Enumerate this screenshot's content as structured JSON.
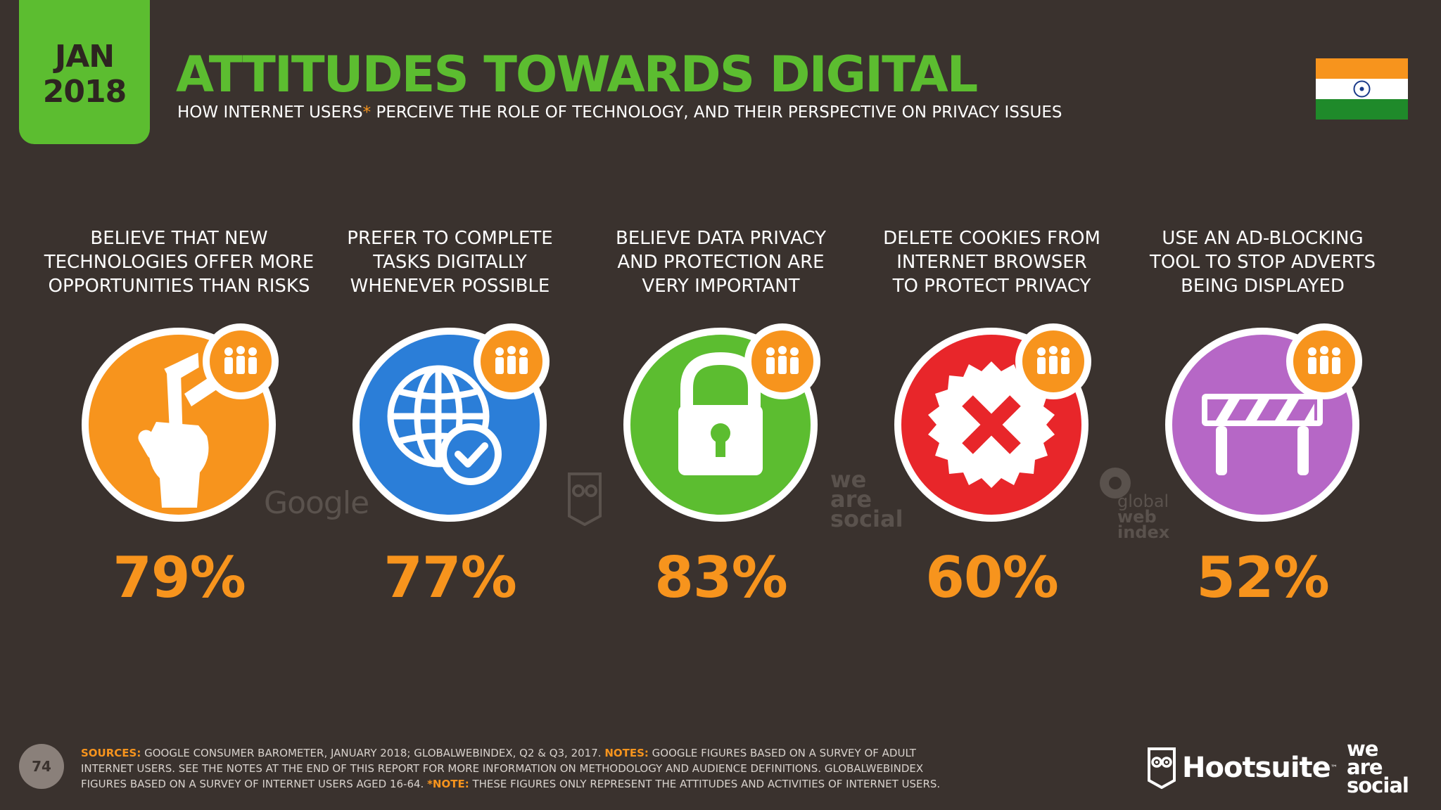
{
  "header": {
    "date_month": "JAN",
    "date_year": "2018",
    "title": "ATTITUDES TOWARDS DIGITAL",
    "subtitle_pre": "HOW INTERNET USERS",
    "subtitle_asterisk": "*",
    "subtitle_post": " PERCEIVE THE ROLE OF TECHNOLOGY, AND THEIR PERSPECTIVE ON PRIVACY ISSUES",
    "flag_icon": "india-flag-icon"
  },
  "stats": [
    {
      "label": "BELIEVE THAT NEW\nTECHNOLOGIES OFFER MORE\nOPPORTUNITIES THAN RISKS",
      "value": "79%",
      "color": "#f7941d",
      "icon": "crossed-fingers-icon"
    },
    {
      "label": "PREFER TO COMPLETE\nTASKS DIGITALLY\nWHENEVER POSSIBLE",
      "value": "77%",
      "color": "#2b7ed8",
      "icon": "globe-check-icon"
    },
    {
      "label": "BELIEVE DATA PRIVACY\nAND PROTECTION ARE\nVERY IMPORTANT",
      "value": "83%",
      "color": "#5cbd30",
      "icon": "padlock-icon"
    },
    {
      "label": "DELETE COOKIES FROM\nINTERNET BROWSER\nTO PROTECT PRIVACY",
      "value": "60%",
      "color": "#e8262a",
      "icon": "cross-seal-icon"
    },
    {
      "label": "USE AN AD-BLOCKING\nTOOL TO STOP ADVERTS\nBEING DISPLAYED",
      "value": "52%",
      "color": "#b667c6",
      "icon": "barrier-icon"
    }
  ],
  "badge_color": "#f7941d",
  "badge_icon": "people-icon",
  "watermarks": {
    "google": "Google",
    "we_are_social": [
      "we",
      "are",
      "social"
    ],
    "gwi": [
      "global",
      "web",
      "index"
    ]
  },
  "footer": {
    "page_number": "74",
    "sources_label": "SOURCES:",
    "sources_text": " GOOGLE CONSUMER BAROMETER, JANUARY 2018; GLOBALWEBINDEX, Q2 & Q3, 2017. ",
    "notes_label": "NOTES:",
    "notes_text": " GOOGLE FIGURES BASED ON A SURVEY OF ADULT INTERNET USERS. SEE THE NOTES AT THE END OF THIS REPORT FOR MORE INFORMATION ON METHODOLOGY AND AUDIENCE DEFINITIONS. GLOBALWEBINDEX FIGURES BASED ON A SURVEY OF INTERNET USERS AGED 16-64. ",
    "note2_label": "*NOTE:",
    "note2_text": " THESE FIGURES ONLY REPRESENT THE ATTITUDES AND ACTIVITIES OF INTERNET USERS.",
    "hootsuite": "Hootsuite",
    "hootsuite_tm": "™",
    "wearesocial": [
      "we",
      "are",
      "social"
    ]
  }
}
